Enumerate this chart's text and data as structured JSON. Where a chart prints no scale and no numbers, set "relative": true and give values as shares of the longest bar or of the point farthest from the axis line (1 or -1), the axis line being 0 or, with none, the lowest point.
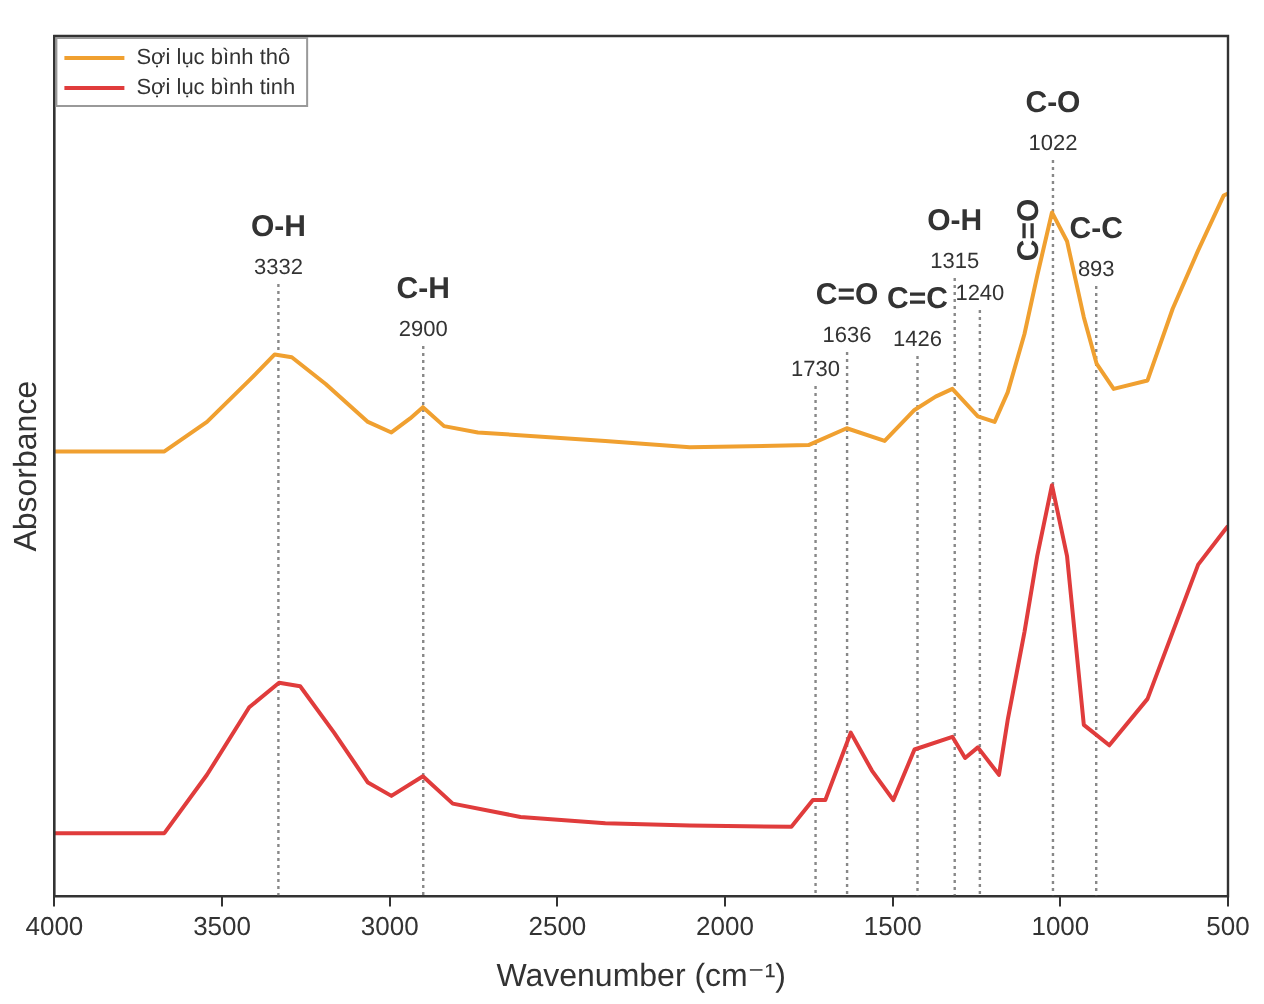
{
  "chart_data": {
    "type": "line",
    "relative": true,
    "xlabel": "Wavenumber (cm⁻¹)",
    "ylabel": "Absorbance",
    "xlim": [
      4000,
      500
    ],
    "xticks": [
      4000,
      3500,
      3000,
      2500,
      2000,
      1500,
      1000,
      500
    ],
    "grid": false,
    "legend": "top left",
    "marker": "none",
    "line_style": "solid",
    "series": [
      {
        "name": "Sợi lục bình thô",
        "color": "#f0a030",
        "x": [
          4000,
          3672,
          3545,
          3419,
          3343,
          3292,
          3191,
          3065,
          2995,
          2939,
          2901,
          2838,
          2737,
          2357,
          2105,
          1751,
          1637,
          1524,
          1435,
          1372,
          1322,
          1246,
          1196,
          1157,
          1107,
          1069,
          1025,
          980,
          930,
          892,
          841,
          740,
          665,
          589,
          513,
          500
        ],
        "values": [
          0.633,
          0.633,
          0.675,
          0.734,
          0.771,
          0.767,
          0.729,
          0.675,
          0.66,
          0.68,
          0.696,
          0.669,
          0.66,
          0.648,
          0.639,
          0.642,
          0.666,
          0.648,
          0.692,
          0.711,
          0.722,
          0.683,
          0.675,
          0.717,
          0.8,
          0.883,
          0.973,
          0.932,
          0.824,
          0.758,
          0.722,
          0.734,
          0.836,
          0.919,
          0.997,
          1.0
        ]
      },
      {
        "name": "Sợi lục bình tinh",
        "color": "#e03c3c",
        "x": [
          4000,
          3672,
          3545,
          3419,
          3330,
          3267,
          3166,
          3065,
          2995,
          2901,
          2812,
          2610,
          2357,
          2105,
          1802,
          1738,
          1701,
          1625,
          1562,
          1498,
          1435,
          1322,
          1284,
          1246,
          1183,
          1157,
          1107,
          1069,
          1025,
          980,
          930,
          854,
          740,
          665,
          589,
          513,
          500
        ],
        "values": [
          0.09,
          0.09,
          0.173,
          0.269,
          0.304,
          0.299,
          0.233,
          0.162,
          0.143,
          0.171,
          0.132,
          0.113,
          0.104,
          0.101,
          0.099,
          0.137,
          0.137,
          0.233,
          0.179,
          0.137,
          0.209,
          0.227,
          0.197,
          0.212,
          0.173,
          0.251,
          0.376,
          0.484,
          0.585,
          0.484,
          0.244,
          0.215,
          0.281,
          0.376,
          0.472,
          0.519,
          0.527
        ]
      }
    ],
    "ref_lines": [
      {
        "axis": "x",
        "value": 3332,
        "label": "O-H\n3332",
        "color": "#888888",
        "line_style": "dotted"
      },
      {
        "axis": "x",
        "value": 2900,
        "label": "C-H\n2900",
        "color": "#888888",
        "line_style": "dotted"
      },
      {
        "axis": "x",
        "value": 1730,
        "label": "1730",
        "color": "#888888",
        "line_style": "dotted"
      },
      {
        "axis": "x",
        "value": 1636,
        "label": "C=O\n1636",
        "color": "#888888",
        "line_style": "dotted"
      },
      {
        "axis": "x",
        "value": 1426,
        "label": "C=C\n1426",
        "color": "#888888",
        "line_style": "dotted"
      },
      {
        "axis": "x",
        "value": 1315,
        "label": "O-H\n1315",
        "color": "#888888",
        "line_style": "dotted"
      },
      {
        "axis": "x",
        "value": 1240,
        "label": "1240",
        "color": "#888888",
        "line_style": "dotted"
      },
      {
        "axis": "x",
        "value": 1022,
        "label": "C-O\n1022",
        "color": "#888888",
        "line_style": "dotted"
      },
      {
        "axis": "x",
        "value": 893,
        "label": "C-C\n893",
        "color": "#888888",
        "line_style": "dotted"
      }
    ],
    "annotations": [
      "C=O"
    ]
  }
}
